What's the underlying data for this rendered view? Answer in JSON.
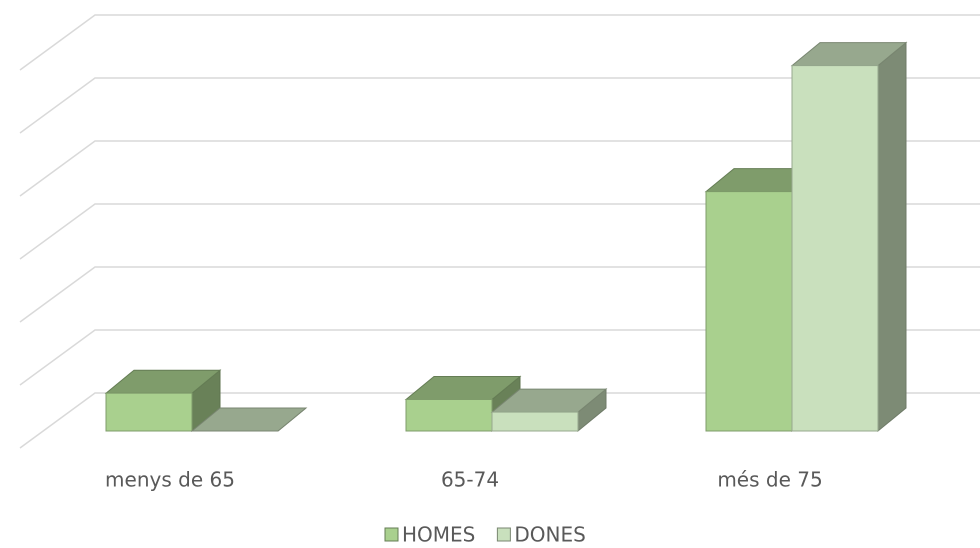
{
  "chart_data": {
    "type": "bar3d",
    "categories": [
      "menys de 65",
      "65-74",
      "més de 75"
    ],
    "series": [
      {
        "name": "HOMES",
        "color": "#a9d08e",
        "values": [
          0.6,
          0.5,
          3.8
        ]
      },
      {
        "name": "DONES",
        "color": "#c9e0bd",
        "values": [
          0,
          0.3,
          5.8
        ]
      }
    ],
    "ylim": [
      0,
      6
    ],
    "yticks": [
      0,
      1,
      2,
      3,
      4,
      5,
      6
    ],
    "grid": true,
    "legend": "bottom"
  }
}
